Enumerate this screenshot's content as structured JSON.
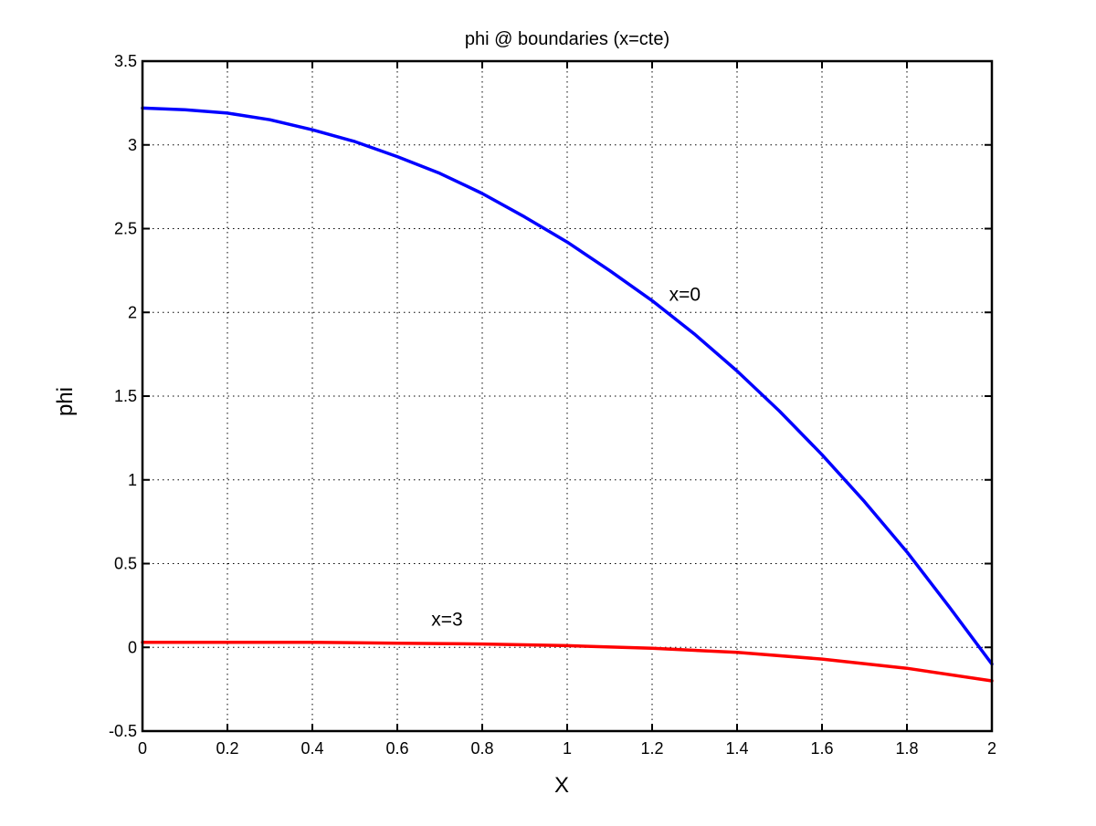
{
  "chart_data": {
    "type": "line",
    "title": "phi @ boundaries (x=cte)",
    "xlabel": "X",
    "ylabel": "phi",
    "xlim": [
      0,
      2
    ],
    "ylim": [
      -0.5,
      3.5
    ],
    "xticks": [
      "0",
      "0.2",
      "0.4",
      "0.6",
      "0.8",
      "1",
      "1.2",
      "1.4",
      "1.6",
      "1.8",
      "2"
    ],
    "yticks": [
      "-0.5",
      "0",
      "0.5",
      "1",
      "1.5",
      "2",
      "2.5",
      "3",
      "3.5"
    ],
    "grid": true,
    "series": [
      {
        "name": "x=0",
        "color": "#0000ff",
        "x": [
          0,
          0.1,
          0.2,
          0.3,
          0.4,
          0.5,
          0.6,
          0.7,
          0.8,
          0.9,
          1.0,
          1.1,
          1.2,
          1.3,
          1.4,
          1.5,
          1.6,
          1.7,
          1.8,
          1.9,
          2.0
        ],
        "y": [
          3.22,
          3.21,
          3.19,
          3.15,
          3.09,
          3.02,
          2.93,
          2.83,
          2.71,
          2.57,
          2.42,
          2.25,
          2.07,
          1.87,
          1.65,
          1.41,
          1.15,
          0.87,
          0.57,
          0.24,
          -0.1
        ]
      },
      {
        "name": "x=3",
        "color": "#ff0000",
        "x": [
          0,
          0.2,
          0.4,
          0.6,
          0.8,
          1.0,
          1.2,
          1.4,
          1.6,
          1.8,
          2.0
        ],
        "y": [
          0.03,
          0.03,
          0.03,
          0.025,
          0.02,
          0.01,
          -0.005,
          -0.03,
          -0.07,
          -0.125,
          -0.2
        ]
      }
    ],
    "annotations": [
      {
        "text": "x=0",
        "x": 1.24,
        "y": 2.07
      },
      {
        "text": "x=3",
        "x": 0.68,
        "y": 0.13
      }
    ]
  }
}
